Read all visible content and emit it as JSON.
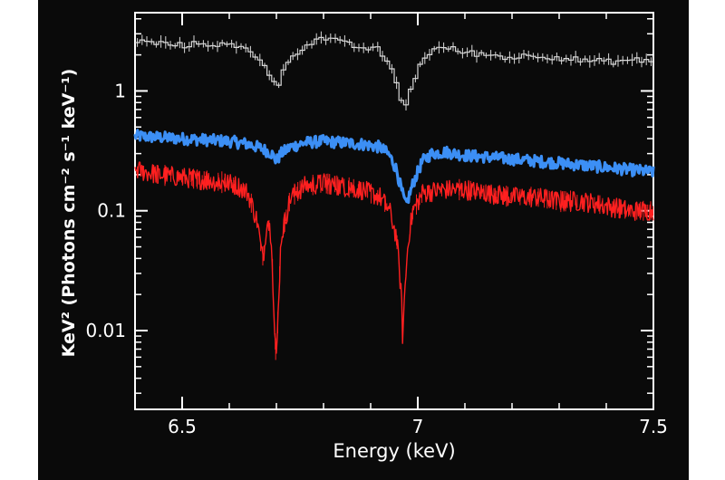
{
  "chart_data": {
    "type": "line",
    "title": "",
    "xlabel": "Energy (keV)",
    "ylabel": "KeV² (Photons cm⁻² s⁻¹ keV⁻¹)",
    "xlim": [
      6.4,
      7.5
    ],
    "ylim": [
      0.0022,
      4.5
    ],
    "yscale": "log",
    "grid": false,
    "legend": "none",
    "x_ticks": [
      6.5,
      7,
      7.5
    ],
    "x_tick_labels": [
      "6.5",
      "7",
      "7.5"
    ],
    "y_ticks": [
      0.01,
      0.1,
      1
    ],
    "y_tick_labels": [
      "0.01",
      "0.1",
      "1"
    ],
    "colors": {
      "background": "#0a0a0a",
      "axes": "#ffffff"
    },
    "series": [
      {
        "color": "#d8d8d8",
        "style": "step-with-errorbars",
        "x": [
          6.4,
          6.45,
          6.5,
          6.55,
          6.6,
          6.64,
          6.67,
          6.69,
          6.7,
          6.71,
          6.73,
          6.76,
          6.8,
          6.84,
          6.88,
          6.92,
          6.94,
          6.955,
          6.965,
          6.975,
          6.99,
          7.01,
          7.03,
          7.06,
          7.1,
          7.15,
          7.2,
          7.25,
          7.3,
          7.35,
          7.4,
          7.45,
          7.5
        ],
        "y": [
          2.6,
          2.5,
          2.4,
          2.5,
          2.4,
          2.2,
          1.8,
          1.3,
          1.05,
          1.3,
          1.9,
          2.4,
          2.8,
          2.5,
          2.3,
          2.2,
          1.6,
          1.2,
          0.85,
          0.75,
          1.2,
          1.8,
          2.2,
          2.3,
          2.1,
          2.0,
          1.9,
          2.0,
          1.9,
          1.8,
          1.75,
          1.8,
          1.8
        ]
      },
      {
        "color": "#3c8ff5",
        "style": "noisy-line",
        "x": [
          6.4,
          6.45,
          6.5,
          6.55,
          6.6,
          6.64,
          6.67,
          6.69,
          6.7,
          6.71,
          6.73,
          6.76,
          6.8,
          6.84,
          6.88,
          6.92,
          6.94,
          6.955,
          6.965,
          6.975,
          6.99,
          7.01,
          7.03,
          7.06,
          7.1,
          7.15,
          7.2,
          7.25,
          7.3,
          7.35,
          7.4,
          7.45,
          7.5
        ],
        "y": [
          0.42,
          0.41,
          0.4,
          0.39,
          0.38,
          0.36,
          0.33,
          0.3,
          0.26,
          0.3,
          0.34,
          0.37,
          0.38,
          0.37,
          0.36,
          0.34,
          0.29,
          0.22,
          0.15,
          0.11,
          0.17,
          0.26,
          0.3,
          0.31,
          0.29,
          0.28,
          0.27,
          0.26,
          0.25,
          0.24,
          0.23,
          0.22,
          0.21
        ]
      },
      {
        "color": "#ff2020",
        "style": "noisy-line",
        "x": [
          6.4,
          6.45,
          6.5,
          6.55,
          6.6,
          6.62,
          6.64,
          6.66,
          6.67,
          6.675,
          6.68,
          6.69,
          6.695,
          6.7,
          6.705,
          6.71,
          6.73,
          6.76,
          6.8,
          6.84,
          6.88,
          6.92,
          6.94,
          6.955,
          6.965,
          6.968,
          6.972,
          6.98,
          6.99,
          7.01,
          7.05,
          7.1,
          7.15,
          7.2,
          7.25,
          7.3,
          7.35,
          7.4,
          7.45,
          7.5
        ],
        "y": [
          0.22,
          0.2,
          0.19,
          0.18,
          0.17,
          0.16,
          0.14,
          0.08,
          0.04,
          0.05,
          0.09,
          0.06,
          0.012,
          0.0055,
          0.02,
          0.06,
          0.13,
          0.16,
          0.17,
          0.16,
          0.15,
          0.13,
          0.1,
          0.06,
          0.02,
          0.0085,
          0.02,
          0.06,
          0.1,
          0.14,
          0.15,
          0.15,
          0.14,
          0.13,
          0.13,
          0.12,
          0.12,
          0.11,
          0.1,
          0.1
        ]
      }
    ]
  }
}
